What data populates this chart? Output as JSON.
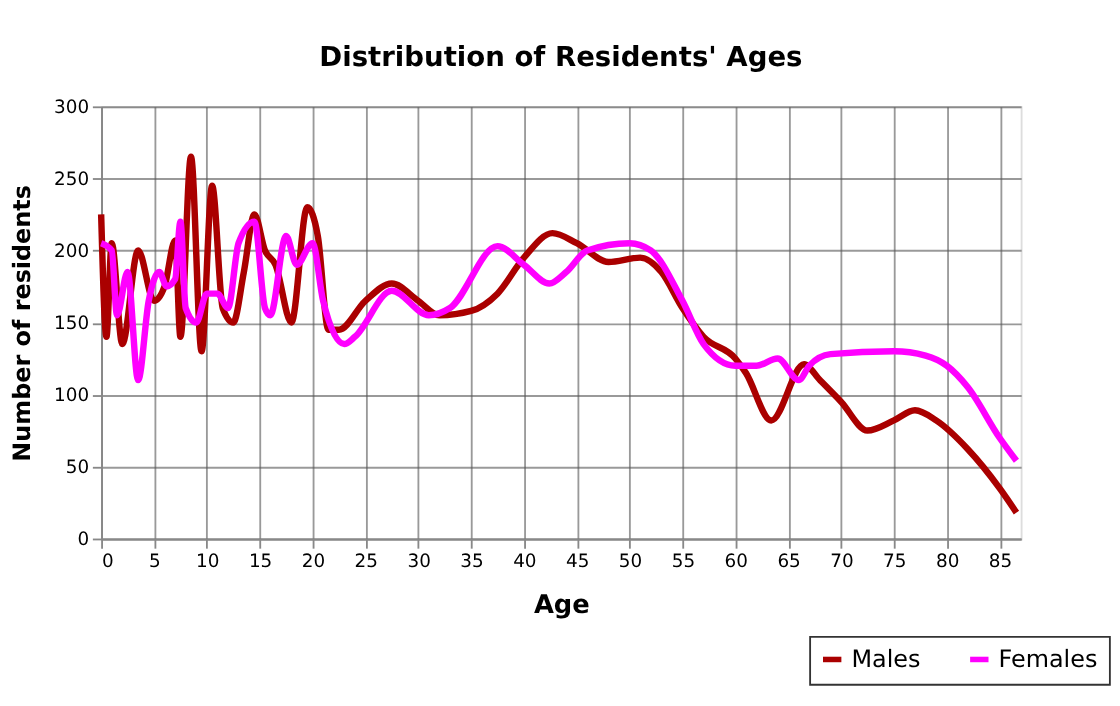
{
  "chart_data": {
    "type": "line",
    "title": "Distribution of Residents' Ages",
    "xlabel": "Age",
    "ylabel": "Number of residents",
    "xlim": [
      0,
      87
    ],
    "xticks": [
      0,
      5,
      10,
      15,
      20,
      25,
      30,
      35,
      40,
      45,
      50,
      55,
      60,
      65,
      70,
      75,
      80,
      85
    ],
    "ylim": [
      0,
      300
    ],
    "yticks": [
      0,
      50,
      100,
      150,
      200,
      250,
      300
    ],
    "grid": true,
    "legend": "bottom right",
    "marker": "none",
    "line_style": "solid",
    "series": [
      {
        "name": "Males",
        "color": "#aa0000",
        "x": [
          0,
          0.5,
          1,
          2,
          3.5,
          5,
          6,
          7,
          7.5,
          8.5,
          9.5,
          10.5,
          11.5,
          12.5,
          13.5,
          14.5,
          15.5,
          16.5,
          18,
          19.5,
          20.5,
          21.5,
          22.5,
          25,
          27.5,
          30,
          32,
          35,
          37.5,
          40,
          42.7,
          45,
          48,
          51,
          53,
          55,
          57,
          60,
          61,
          63.4,
          66.5,
          68,
          70,
          72.5,
          75,
          77,
          79,
          82,
          85,
          86.6
        ],
        "values": [
          225,
          140,
          205,
          135,
          200,
          165,
          175,
          207,
          140,
          265,
          130,
          245,
          160,
          150,
          185,
          225,
          200,
          190,
          150,
          230,
          210,
          145,
          145,
          165,
          177,
          165,
          155,
          158,
          170,
          195,
          212,
          205,
          192,
          195,
          185,
          160,
          140,
          125,
          115,
          82,
          121,
          110,
          95,
          75,
          82,
          89,
          82,
          62,
          35,
          18
        ]
      },
      {
        "name": "Females",
        "color": "#ff00ff",
        "x": [
          0,
          1,
          1.5,
          2.5,
          3.5,
          4.5,
          5.5,
          6.2,
          7,
          7.5,
          8,
          9,
          10,
          11,
          12,
          13,
          14.5,
          15.5,
          16,
          17.5,
          18.5,
          20,
          21,
          23,
          24,
          27.5,
          31,
          33,
          37.5,
          40,
          42.4,
          44,
          46,
          50,
          52,
          55,
          57,
          60,
          62,
          64,
          66,
          67,
          69,
          75,
          78,
          80,
          82,
          85,
          86.6
        ],
        "values": [
          205,
          200,
          155,
          185,
          110,
          165,
          185,
          175,
          180,
          220,
          160,
          150,
          170,
          170,
          160,
          205,
          220,
          160,
          155,
          210,
          190,
          205,
          165,
          135,
          140,
          172,
          155,
          160,
          203,
          190,
          177,
          185,
          200,
          205,
          200,
          165,
          135,
          120,
          120,
          125,
          110,
          120,
          128,
          130,
          127,
          120,
          105,
          70,
          54
        ]
      }
    ]
  }
}
